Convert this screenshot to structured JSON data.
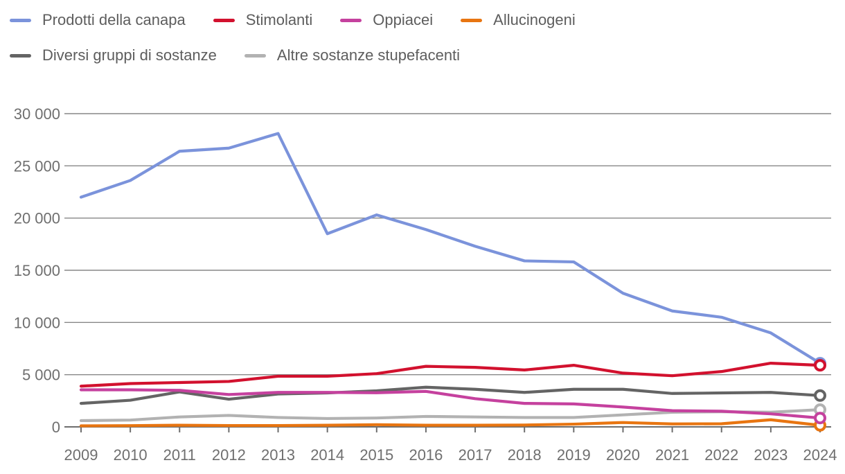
{
  "legend": {
    "rows": [
      {
        "items": [
          {
            "series_index": 0
          },
          {
            "series_index": 1
          },
          {
            "series_index": 2
          },
          {
            "series_index": 3
          }
        ]
      },
      {
        "items": [
          {
            "series_index": 4
          },
          {
            "series_index": 5
          }
        ]
      }
    ]
  },
  "chart_data": {
    "type": "line",
    "x": [
      "2009",
      "2010",
      "2011",
      "2012",
      "2013",
      "2014",
      "2015",
      "2016",
      "2017",
      "2018",
      "2019",
      "2020",
      "2021",
      "2022",
      "2023",
      "2024"
    ],
    "xlabel": "",
    "ylabel": "",
    "title": "",
    "ylim": [
      0,
      30000
    ],
    "yticks": [
      0,
      5000,
      10000,
      15000,
      20000,
      25000,
      30000
    ],
    "ytick_labels": [
      "0",
      "5 000",
      "10 000",
      "15 000",
      "20 000",
      "25 000",
      "30 000"
    ],
    "grid": true,
    "legend_position": "top-left",
    "colors": {
      "grid": "#878787",
      "axis": "#6e6e6e",
      "tick_text": "#6f6f6f"
    },
    "series": [
      {
        "name": "Prodotti della canapa",
        "color": "#7b93db",
        "end_marker": true,
        "values": [
          22000,
          23600,
          26400,
          26700,
          28100,
          18500,
          20300,
          18900,
          17300,
          15900,
          15800,
          12800,
          11100,
          10500,
          9000,
          6100
        ]
      },
      {
        "name": "Stimolanti",
        "color": "#d2112e",
        "end_marker": true,
        "values": [
          3900,
          4150,
          4250,
          4350,
          4850,
          4850,
          5100,
          5800,
          5700,
          5450,
          5900,
          5150,
          4900,
          5300,
          6100,
          5900
        ]
      },
      {
        "name": "Oppiacei",
        "color": "#c5419e",
        "end_marker": true,
        "values": [
          3550,
          3550,
          3500,
          3100,
          3300,
          3300,
          3270,
          3400,
          2700,
          2250,
          2200,
          1900,
          1550,
          1500,
          1250,
          850
        ]
      },
      {
        "name": "Allucinogeni",
        "color": "#e87511",
        "end_marker": true,
        "values": [
          100,
          120,
          160,
          130,
          130,
          160,
          210,
          160,
          160,
          180,
          260,
          420,
          280,
          300,
          680,
          150
        ]
      },
      {
        "name": "Diversi gruppi di sostanze",
        "color": "#646464",
        "end_marker": true,
        "values": [
          2250,
          2550,
          3350,
          2650,
          3150,
          3250,
          3450,
          3800,
          3600,
          3300,
          3600,
          3600,
          3200,
          3250,
          3300,
          3000
        ]
      },
      {
        "name": "Altre sostanze stupefacenti",
        "color": "#b2b2b2",
        "end_marker": true,
        "values": [
          600,
          650,
          950,
          1100,
          900,
          800,
          850,
          1000,
          950,
          900,
          900,
          1150,
          1400,
          1450,
          1400,
          1650
        ]
      }
    ]
  }
}
